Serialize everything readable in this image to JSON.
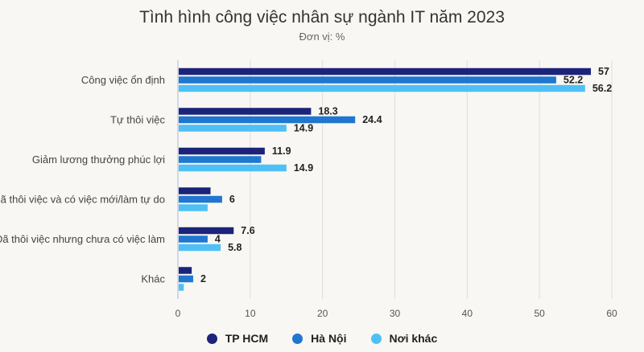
{
  "chart_data": {
    "type": "bar",
    "orientation": "horizontal",
    "title": "Tình hình công việc nhân sự ngành IT năm 2023",
    "subtitle": "Đơn vị: %",
    "categories": [
      "Công việc ổn định",
      "Tự thôi việc",
      "Giảm lương thưởng phúc lợi",
      "Đã thôi việc và có việc mới/làm tự do",
      "Đã thôi việc nhưng chưa có việc làm",
      "Khác"
    ],
    "series": [
      {
        "name": "TP HCM",
        "color": "#1c237a",
        "values": [
          57,
          18.3,
          11.9,
          4.4,
          7.6,
          1.8
        ],
        "labels": [
          "57",
          "18.3",
          "11.9",
          "",
          "7.6",
          ""
        ]
      },
      {
        "name": "Hà Nội",
        "color": "#1f77d0",
        "values": [
          52.2,
          24.4,
          11.4,
          6,
          4,
          2
        ],
        "labels": [
          "52.2",
          "24.4",
          "",
          "6",
          "4",
          "2"
        ]
      },
      {
        "name": "Nơi khác",
        "color": "#4fc0f5",
        "values": [
          56.2,
          14.9,
          14.9,
          4,
          5.8,
          0.7
        ],
        "labels": [
          "56.2",
          "14.9",
          "14.9",
          "",
          "5.8",
          ""
        ]
      }
    ],
    "xlim": [
      0,
      60
    ],
    "xticks": [
      "0",
      "10",
      "20",
      "30",
      "40",
      "50",
      "60"
    ],
    "grid": true,
    "legend_position": "bottom"
  }
}
